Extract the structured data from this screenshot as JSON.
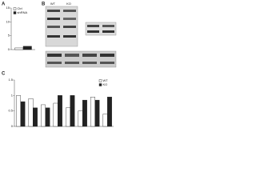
{
  "chart_data": [
    {
      "type": "bar",
      "label": "A",
      "categories": [
        null
      ],
      "series": [
        {
          "name": "Ctrl",
          "color": "#ffffff",
          "values": [
            0.6
          ]
        },
        {
          "name": "shRNA",
          "color": "#222222",
          "values": [
            1.2
          ]
        }
      ],
      "ylim": [
        0,
        15
      ],
      "yticks": [
        0,
        5,
        10,
        15
      ],
      "legend": "upper left"
    },
    {
      "type": "bar",
      "label": "C",
      "categories": [
        null,
        null,
        null,
        null,
        null,
        null,
        null,
        null
      ],
      "series": [
        {
          "name": "WT",
          "color": "#ffffff",
          "values": [
            1.0,
            0.9,
            0.7,
            0.75,
            0.6,
            0.5,
            0.95,
            0.4
          ]
        },
        {
          "name": "KO",
          "color": "#222222",
          "values": [
            0.8,
            0.6,
            0.6,
            1.0,
            1.0,
            0.85,
            0.85,
            0.95
          ]
        }
      ],
      "ylim": [
        0,
        1.5
      ],
      "yticks": [
        0,
        0.5,
        1,
        1.5
      ],
      "legend": "upper right"
    }
  ],
  "blots": {
    "label": "B",
    "lanes": [
      "WT",
      "KO"
    ]
  }
}
